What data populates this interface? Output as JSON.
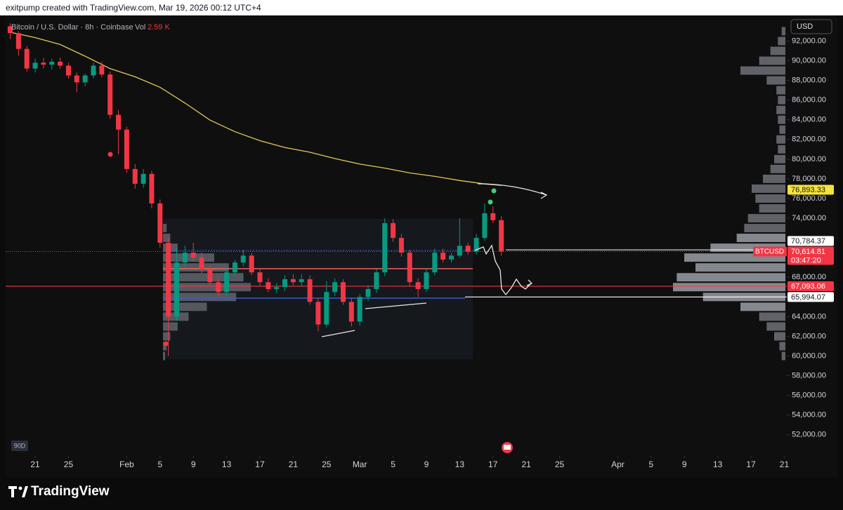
{
  "chart_data": {
    "type": "candlestick",
    "header": "exitpump created with TradingView.com, Mar 19, 2026 00:12 UTC+4",
    "title": "Bitcoin / U.S. Dollar · 8h · Coinbase",
    "volume_label": "Vol",
    "volume_value": "2.59 K",
    "currency": "USD",
    "range_badge": "90D",
    "brand": "TradingView",
    "up_color": "#089981",
    "down_color": "#f23645",
    "xlim": [
      -0.55,
      93.3
    ],
    "xticks": [
      {
        "value": 3,
        "label": "21"
      },
      {
        "value": 7,
        "label": "25"
      },
      {
        "value": 14,
        "label": "Feb"
      },
      {
        "value": 18,
        "label": "5"
      },
      {
        "value": 22,
        "label": "9"
      },
      {
        "value": 26,
        "label": "13"
      },
      {
        "value": 30,
        "label": "17"
      },
      {
        "value": 34,
        "label": "21"
      },
      {
        "value": 38,
        "label": "25"
      },
      {
        "value": 42,
        "label": "Mar"
      },
      {
        "value": 46,
        "label": "5"
      },
      {
        "value": 50,
        "label": "9"
      },
      {
        "value": 54,
        "label": "13"
      },
      {
        "value": 58,
        "label": "17"
      },
      {
        "value": 62,
        "label": "21"
      },
      {
        "value": 66,
        "label": "25"
      },
      {
        "value": 73,
        "label": "Apr"
      },
      {
        "value": 77,
        "label": "5"
      },
      {
        "value": 81,
        "label": "9"
      },
      {
        "value": 85,
        "label": "13"
      },
      {
        "value": 89,
        "label": "17"
      },
      {
        "value": 93,
        "label": "21"
      }
    ],
    "ylim": [
      50200,
      94600
    ],
    "yticks": [
      {
        "value": 52000,
        "label": "52,000.00"
      },
      {
        "value": 54000,
        "label": "54,000.00"
      },
      {
        "value": 56000,
        "label": "56,000.00"
      },
      {
        "value": 58000,
        "label": "58,000.00"
      },
      {
        "value": 60000,
        "label": "60,000.00"
      },
      {
        "value": 62000,
        "label": "62,000.00"
      },
      {
        "value": 64000,
        "label": "64,000.00"
      },
      {
        "value": 68000,
        "label": "68,000.00"
      },
      {
        "value": 74000,
        "label": "74,000.00"
      },
      {
        "value": 76000,
        "label": "76,000.00"
      },
      {
        "value": 78000,
        "label": "78,000.00"
      },
      {
        "value": 80000,
        "label": "80,000.00"
      },
      {
        "value": 82000,
        "label": "82,000.00"
      },
      {
        "value": 84000,
        "label": "84,000.00"
      },
      {
        "value": 86000,
        "label": "86,000.00"
      },
      {
        "value": 88000,
        "label": "88,000.00"
      },
      {
        "value": 90000,
        "label": "90,000.00"
      },
      {
        "value": 92000,
        "label": "92,000.00"
      }
    ],
    "candles": {
      "open": [
        93500,
        92800,
        91200,
        89200,
        89800,
        89600,
        89900,
        89500,
        88500,
        87800,
        88500,
        89500,
        88600,
        84500,
        83000,
        79000,
        77500,
        78500,
        75500,
        71500,
        64000,
        69500,
        70500,
        70000,
        68800,
        67500,
        66500,
        68500,
        69500,
        70200,
        68500,
        67500,
        66800,
        67000,
        67800,
        67500,
        67800,
        65500,
        63200,
        66500,
        67500,
        65500,
        63500,
        66000,
        66800,
        68500,
        73500,
        72000,
        70500,
        67500,
        66800,
        68500,
        70500,
        69800,
        70200,
        71200,
        70600,
        72000,
        74500,
        73800
      ],
      "high": [
        93800,
        93000,
        91500,
        90200,
        90300,
        90200,
        90300,
        89800,
        88800,
        88700,
        89800,
        89900,
        88900,
        85000,
        83300,
        79500,
        79000,
        78800,
        75900,
        72000,
        71000,
        71200,
        71500,
        70500,
        69200,
        67900,
        68900,
        69800,
        70800,
        70500,
        68900,
        67900,
        67400,
        68200,
        68300,
        68300,
        68200,
        65900,
        67600,
        67900,
        67800,
        65900,
        66300,
        67200,
        68800,
        74000,
        73900,
        72400,
        70800,
        67900,
        68900,
        70900,
        70900,
        70500,
        74000,
        71500,
        72400,
        75500,
        75200,
        74200
      ],
      "low": [
        92200,
        90500,
        88900,
        88800,
        89200,
        89100,
        89200,
        88200,
        86800,
        87400,
        88200,
        88300,
        84100,
        80500,
        78600,
        77000,
        77100,
        75000,
        71000,
        60000,
        63600,
        69000,
        69600,
        68400,
        67200,
        66000,
        66100,
        68100,
        69100,
        68200,
        67100,
        66500,
        66400,
        66600,
        67200,
        67100,
        65200,
        62500,
        62900,
        66100,
        65200,
        63000,
        63100,
        65600,
        66400,
        68100,
        71600,
        70100,
        67100,
        66000,
        66500,
        68200,
        69500,
        69500,
        70000,
        70300,
        70300,
        71700,
        73500,
        70200
      ],
      "close": [
        92800,
        91200,
        89200,
        89800,
        89600,
        89900,
        89500,
        88500,
        87800,
        88500,
        89500,
        88600,
        84500,
        83000,
        79000,
        77500,
        78500,
        75500,
        71500,
        64000,
        69500,
        70500,
        70000,
        68800,
        67500,
        66500,
        68500,
        69500,
        70200,
        68500,
        67500,
        66800,
        67000,
        67800,
        67500,
        67800,
        65500,
        63200,
        66500,
        67500,
        65500,
        63500,
        66000,
        66800,
        68500,
        73500,
        72000,
        70500,
        67500,
        66800,
        68500,
        70500,
        69800,
        70200,
        71200,
        70600,
        72000,
        74500,
        73800,
        70614.81
      ]
    },
    "ma": {
      "color": "#e6c65a",
      "x": [
        0,
        3,
        6,
        9,
        12,
        15,
        18,
        21,
        24,
        27,
        30,
        33,
        36,
        39,
        42,
        45,
        48,
        51,
        54,
        57,
        59
      ],
      "values": [
        92900,
        92350,
        91650,
        90460,
        89200,
        88370,
        87300,
        85700,
        83970,
        82790,
        81880,
        81180,
        80700,
        80060,
        79500,
        79090,
        78600,
        78250,
        77830,
        77480,
        77340
      ]
    },
    "visible_range_profile": {
      "prices": [
        60000,
        61000,
        62000,
        63000,
        64000,
        65000,
        66000,
        67000,
        68000,
        69000,
        70000,
        71000,
        72000,
        73000,
        74000,
        75000,
        76000,
        77000,
        78000,
        79000,
        80000,
        81000,
        82000,
        83000,
        84000,
        85000,
        86000,
        87000,
        88000,
        89000,
        90000,
        91000,
        92000,
        93000
      ],
      "volumes": [
        5,
        8,
        15,
        25,
        35,
        60,
        110,
        150,
        145,
        120,
        135,
        100,
        65,
        55,
        50,
        35,
        40,
        45,
        30,
        20,
        15,
        10,
        12,
        8,
        10,
        12,
        10,
        12,
        25,
        60,
        35,
        20,
        10,
        5
      ]
    },
    "fixed_range_profile": {
      "prices": [
        60000,
        61000,
        62000,
        63000,
        64000,
        65000,
        66000,
        67000,
        68000,
        69000,
        70000,
        71000,
        72000,
        73000
      ],
      "volumes": [
        3,
        5,
        10,
        20,
        35,
        60,
        100,
        120,
        110,
        90,
        70,
        20,
        10,
        5
      ]
    },
    "price_labels": [
      {
        "value": 76893.33,
        "label": "76,893.33",
        "color": "#f5e33b"
      },
      {
        "value": 70784.37,
        "label": "70,784.37",
        "color": "#ffffff"
      },
      {
        "value": 70614.81,
        "label": "70,614.81",
        "color": "#f23645",
        "name": "BTCUSD",
        "countdown": "03:47:20"
      },
      {
        "value": 67093.06,
        "label": "67,093.06",
        "color": "#f23645"
      },
      {
        "value": 65994.07,
        "label": "65,994.07",
        "color": "#ffffff"
      }
    ]
  }
}
